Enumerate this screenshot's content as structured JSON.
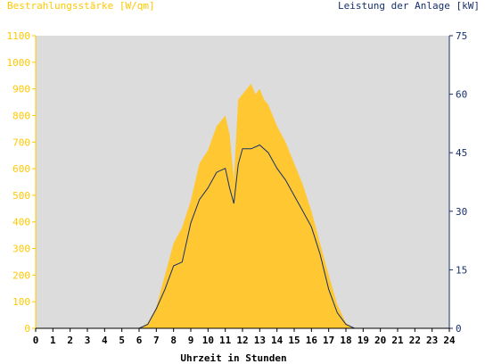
{
  "colors": {
    "plot_bg": "#dcdcdc",
    "irradiance_fill": "#ffc832",
    "power_line": "#17306b",
    "left_axis": "#ffc800",
    "right_axis": "#17306b",
    "x_axis": "#000000"
  },
  "chart_data": {
    "type": "area",
    "title": "",
    "ylabel": "Bestrahlungsstärke [W/qm]",
    "y2label": "Leistung der Anlage [kW]",
    "xlabel": "Uhrzeit in Stunden",
    "xlim": [
      0,
      24
    ],
    "ylim": [
      0,
      1100
    ],
    "y2lim": [
      0,
      75
    ],
    "x_ticks": [
      "0",
      "1",
      "2",
      "3",
      "4",
      "5",
      "6",
      "7",
      "8",
      "9",
      "10",
      "11",
      "12",
      "13",
      "14",
      "15",
      "16",
      "17",
      "18",
      "19",
      "20",
      "21",
      "22",
      "23",
      "24"
    ],
    "y_ticks": [
      "0",
      "100",
      "200",
      "300",
      "400",
      "500",
      "600",
      "700",
      "800",
      "900",
      "1000",
      "1100"
    ],
    "y2_ticks": [
      "0",
      "15",
      "30",
      "45",
      "60",
      "75"
    ],
    "grid": false,
    "series": [
      {
        "name": "Bestrahlungsstärke [W/qm]",
        "axis": "left",
        "kind": "area",
        "x": [
          0,
          6.0,
          6.5,
          7.0,
          7.5,
          8.0,
          8.5,
          9.0,
          9.5,
          10.0,
          10.5,
          11.0,
          11.25,
          11.5,
          11.75,
          12.0,
          12.25,
          12.5,
          12.75,
          13.0,
          13.25,
          13.5,
          14.0,
          14.5,
          15.0,
          15.5,
          16.0,
          16.5,
          17.0,
          17.5,
          18.0,
          18.5,
          19.0,
          24
        ],
        "y": [
          0,
          0,
          20,
          80,
          200,
          320,
          380,
          480,
          620,
          670,
          760,
          800,
          730,
          560,
          860,
          880,
          900,
          920,
          880,
          900,
          860,
          840,
          760,
          700,
          620,
          540,
          440,
          320,
          200,
          90,
          20,
          0,
          0,
          0
        ]
      },
      {
        "name": "Leistung der Anlage [kW]",
        "axis": "right",
        "kind": "line",
        "x": [
          0,
          6.0,
          6.5,
          7.0,
          7.5,
          8.0,
          8.5,
          9.0,
          9.5,
          10.0,
          10.5,
          11.0,
          11.25,
          11.5,
          11.75,
          12.0,
          12.5,
          13.0,
          13.5,
          14.0,
          14.5,
          15.0,
          15.5,
          16.0,
          16.5,
          17.0,
          17.5,
          18.0,
          18.5,
          19.0,
          24
        ],
        "y": [
          0,
          0,
          1,
          5,
          10,
          16,
          17,
          27,
          33,
          36,
          40,
          41,
          36,
          32,
          42,
          46,
          46,
          47,
          45,
          41,
          38,
          34,
          30,
          26,
          19,
          10,
          4,
          1,
          0,
          0,
          0
        ]
      }
    ]
  }
}
